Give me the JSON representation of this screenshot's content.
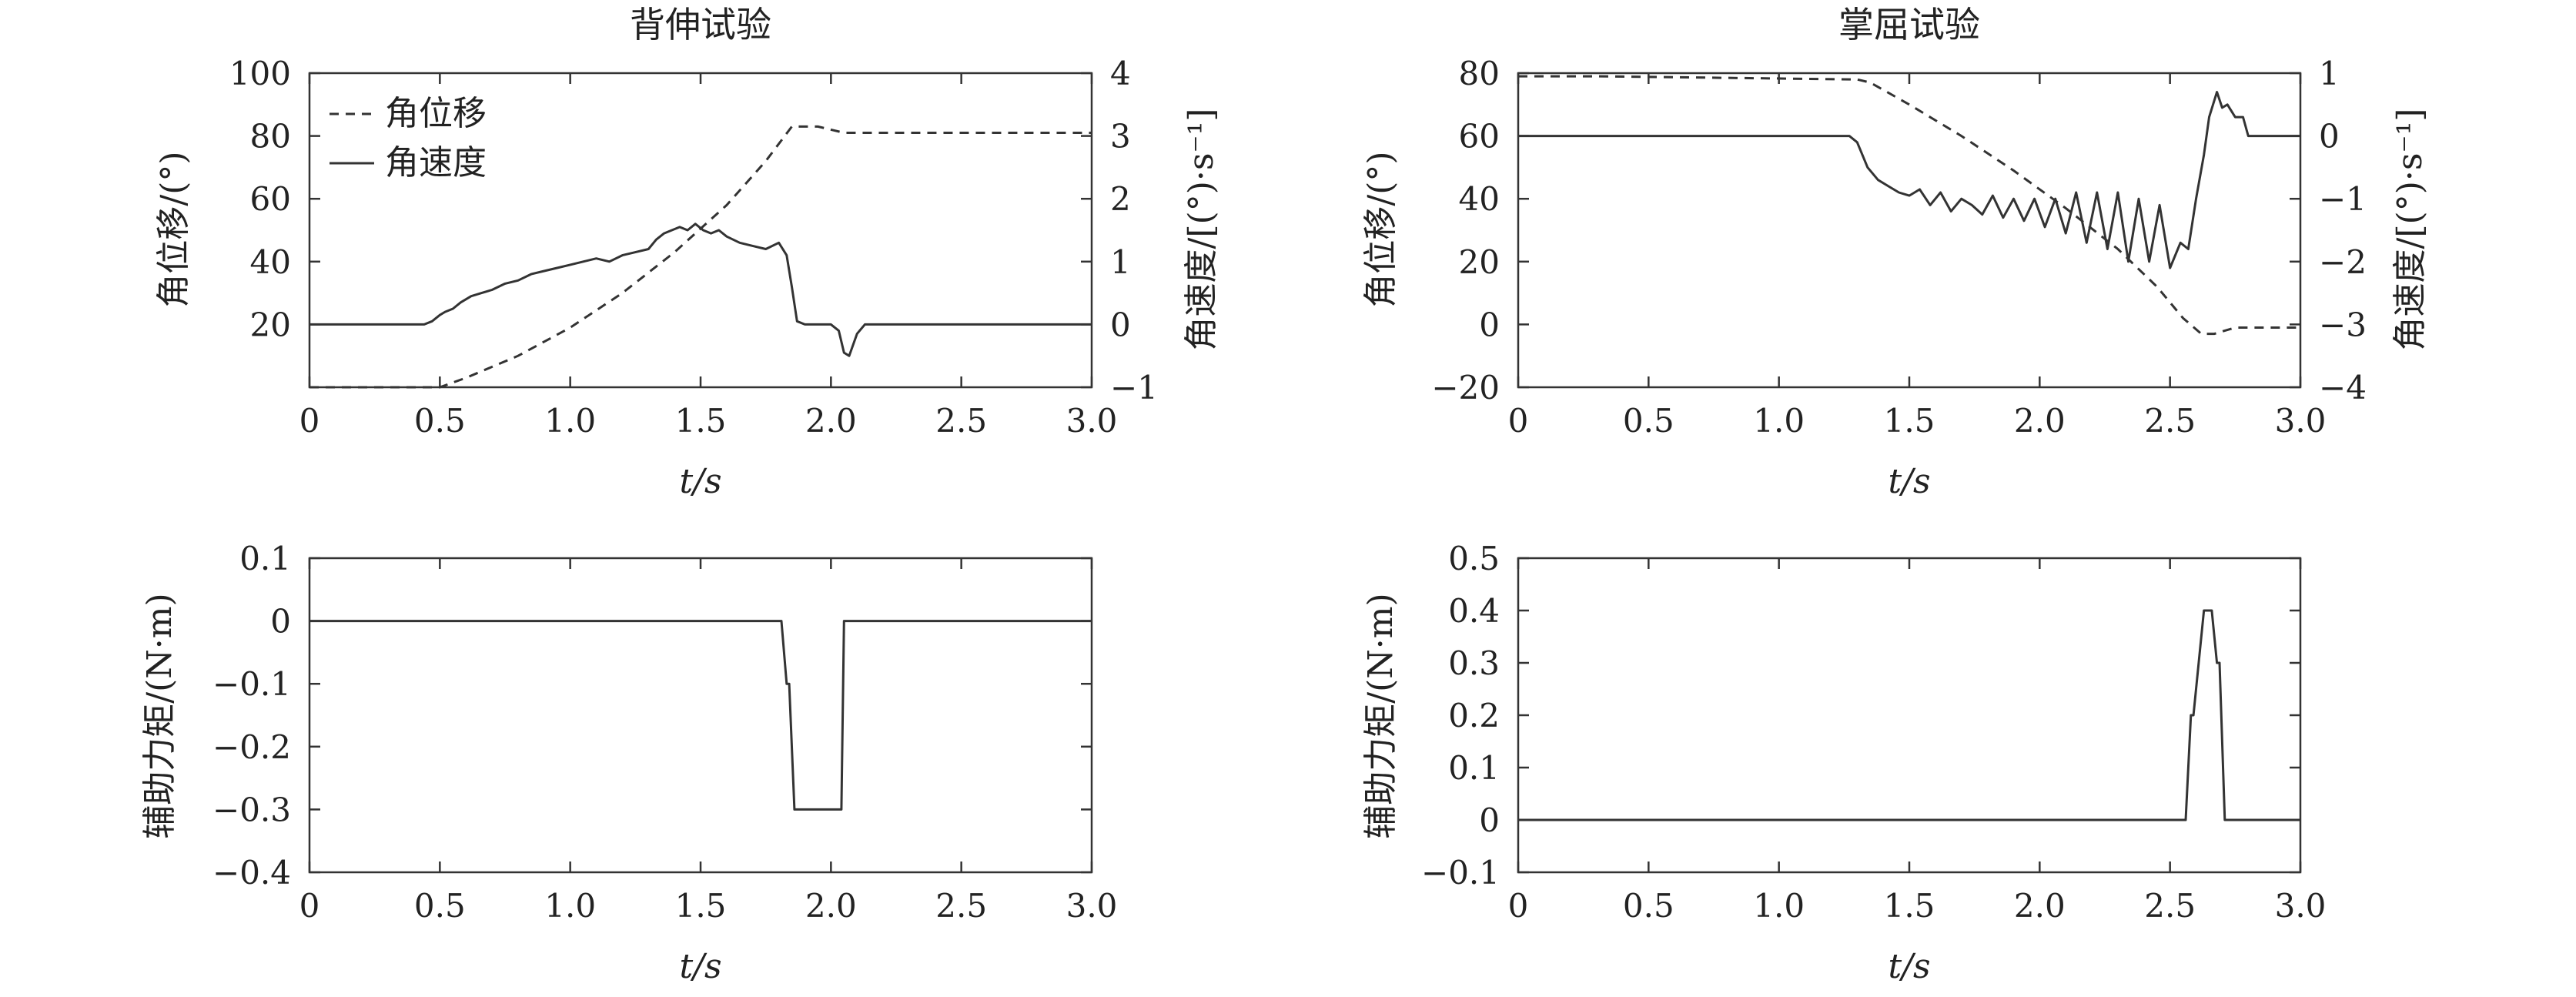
{
  "chart_data": [
    {
      "id": "tl",
      "type": "line",
      "title": "背伸试验",
      "xlabel": "t/s",
      "ylabel": "角位移/(°)",
      "y2label": "角速度/[(°)·s⁻¹]",
      "xlim": [
        0,
        3.0
      ],
      "ylim": [
        0,
        100
      ],
      "y2lim": [
        -1,
        4
      ],
      "xticks": [
        0,
        0.5,
        1.0,
        1.5,
        2.0,
        2.5,
        3.0
      ],
      "xtick_labels": [
        "0",
        "0.5",
        "1.0",
        "1.5",
        "2.0",
        "2.5",
        "3.0"
      ],
      "yticks": [
        20,
        40,
        60,
        80,
        100
      ],
      "ytick_labels": [
        "20",
        "40",
        "60",
        "80",
        "100"
      ],
      "y2ticks": [
        -1,
        0,
        1,
        2,
        3,
        4
      ],
      "y2tick_labels": [
        "−1",
        "0",
        "1",
        "2",
        "3",
        "4"
      ],
      "legend": {
        "placement": "top-left",
        "entries": [
          {
            "name": "角位移",
            "style": "dashed"
          },
          {
            "name": "角速度",
            "style": "solid"
          }
        ]
      },
      "series": [
        {
          "name": "角位移",
          "style": "dashed",
          "axis": "left",
          "x": [
            0,
            0.5,
            0.6,
            0.8,
            1.0,
            1.2,
            1.4,
            1.6,
            1.75,
            1.85,
            1.95,
            2.05,
            3.0
          ],
          "values": [
            0,
            0,
            3,
            10,
            19,
            30,
            43,
            58,
            72,
            83,
            83,
            81,
            81
          ]
        },
        {
          "name": "角速度",
          "style": "solid",
          "axis": "right",
          "x": [
            0,
            0.44,
            0.47,
            0.5,
            0.52,
            0.55,
            0.58,
            0.62,
            0.66,
            0.7,
            0.75,
            0.8,
            0.85,
            0.9,
            0.95,
            1.0,
            1.05,
            1.1,
            1.15,
            1.2,
            1.25,
            1.3,
            1.33,
            1.36,
            1.39,
            1.42,
            1.45,
            1.48,
            1.51,
            1.54,
            1.57,
            1.6,
            1.65,
            1.7,
            1.75,
            1.8,
            1.83,
            1.85,
            1.87,
            1.9,
            1.95,
            2.0,
            2.03,
            2.05,
            2.07,
            2.1,
            2.13,
            2.2,
            3.0
          ],
          "values": [
            0,
            0,
            0.05,
            0.15,
            0.2,
            0.25,
            0.35,
            0.45,
            0.5,
            0.55,
            0.65,
            0.7,
            0.8,
            0.85,
            0.9,
            0.95,
            1.0,
            1.05,
            1.0,
            1.1,
            1.15,
            1.2,
            1.35,
            1.45,
            1.5,
            1.55,
            1.5,
            1.6,
            1.5,
            1.45,
            1.5,
            1.4,
            1.3,
            1.25,
            1.2,
            1.3,
            1.1,
            0.6,
            0.05,
            0.0,
            0.0,
            0.0,
            -0.1,
            -0.45,
            -0.5,
            -0.15,
            0.0,
            0.0,
            0.0
          ]
        }
      ]
    },
    {
      "id": "tr",
      "type": "line",
      "title": "掌屈试验",
      "xlabel": "t/s",
      "ylabel": "角位移/(°)",
      "y2label": "角速度/[(°)·s⁻¹]",
      "xlim": [
        0,
        3.0
      ],
      "ylim": [
        -20,
        80
      ],
      "y2lim": [
        -4,
        1
      ],
      "xticks": [
        0,
        0.5,
        1.0,
        1.5,
        2.0,
        2.5,
        3.0
      ],
      "xtick_labels": [
        "0",
        "0.5",
        "1.0",
        "1.5",
        "2.0",
        "2.5",
        "3.0"
      ],
      "yticks": [
        -20,
        0,
        20,
        40,
        60,
        80
      ],
      "ytick_labels": [
        "−20",
        "0",
        "20",
        "40",
        "60",
        "80"
      ],
      "y2ticks": [
        -4,
        -3,
        -2,
        -1,
        0,
        1
      ],
      "y2tick_labels": [
        "−4",
        "−3",
        "−2",
        "−1",
        "0",
        "1"
      ],
      "series": [
        {
          "name": "角位移",
          "style": "dashed",
          "axis": "left",
          "x": [
            0,
            0.3,
            1.3,
            1.35,
            1.5,
            1.7,
            1.9,
            2.1,
            2.3,
            2.45,
            2.55,
            2.62,
            2.67,
            2.75,
            3.0
          ],
          "values": [
            79,
            79,
            78,
            77,
            70,
            60,
            49,
            37,
            24,
            12,
            2,
            -3,
            -3,
            -1,
            -1
          ]
        },
        {
          "name": "角速度",
          "style": "solid",
          "axis": "right",
          "x": [
            0,
            1.27,
            1.3,
            1.34,
            1.38,
            1.42,
            1.46,
            1.5,
            1.54,
            1.58,
            1.62,
            1.66,
            1.7,
            1.74,
            1.78,
            1.82,
            1.86,
            1.9,
            1.94,
            1.98,
            2.02,
            2.06,
            2.1,
            2.14,
            2.18,
            2.22,
            2.26,
            2.3,
            2.34,
            2.38,
            2.42,
            2.46,
            2.5,
            2.54,
            2.57,
            2.6,
            2.63,
            2.65,
            2.68,
            2.7,
            2.72,
            2.75,
            2.78,
            2.8,
            2.85,
            3.0
          ],
          "values": [
            0,
            0,
            -0.1,
            -0.5,
            -0.7,
            -0.8,
            -0.9,
            -0.95,
            -0.85,
            -1.1,
            -0.9,
            -1.2,
            -1.0,
            -1.1,
            -1.25,
            -0.95,
            -1.3,
            -1.0,
            -1.35,
            -1.0,
            -1.45,
            -1.0,
            -1.55,
            -0.9,
            -1.7,
            -0.9,
            -1.8,
            -0.9,
            -2.0,
            -1.0,
            -2.0,
            -1.1,
            -2.1,
            -1.7,
            -1.8,
            -1.0,
            -0.3,
            0.3,
            0.7,
            0.45,
            0.5,
            0.3,
            0.3,
            0.0,
            0.0,
            0.0
          ]
        }
      ]
    },
    {
      "id": "bl",
      "type": "line",
      "title": "",
      "xlabel": "t/s",
      "ylabel": "辅助力矩/(N·m)",
      "xlim": [
        0,
        3.0
      ],
      "ylim": [
        -0.4,
        0.1
      ],
      "xticks": [
        0,
        0.5,
        1.0,
        1.5,
        2.0,
        2.5,
        3.0
      ],
      "xtick_labels": [
        "0",
        "0.5",
        "1.0",
        "1.5",
        "2.0",
        "2.5",
        "3.0"
      ],
      "yticks": [
        -0.4,
        -0.3,
        -0.2,
        -0.1,
        0,
        0.1
      ],
      "ytick_labels": [
        "−0.4",
        "−0.3",
        "−0.2",
        "−0.1",
        "0",
        "0.1"
      ],
      "series": [
        {
          "name": "",
          "style": "solid",
          "axis": "left",
          "x": [
            0,
            1.81,
            1.83,
            1.84,
            1.86,
            2.04,
            2.05,
            3.0
          ],
          "values": [
            0,
            0,
            -0.1,
            -0.1,
            -0.3,
            -0.3,
            0,
            0
          ]
        }
      ]
    },
    {
      "id": "br",
      "type": "line",
      "title": "",
      "xlabel": "t/s",
      "ylabel": "辅助力矩/(N·m)",
      "xlim": [
        0,
        3.0
      ],
      "ylim": [
        -0.1,
        0.5
      ],
      "xticks": [
        0,
        0.5,
        1.0,
        1.5,
        2.0,
        2.5,
        3.0
      ],
      "xtick_labels": [
        "0",
        "0.5",
        "1.0",
        "1.5",
        "2.0",
        "2.5",
        "3.0"
      ],
      "yticks": [
        -0.1,
        0,
        0.1,
        0.2,
        0.3,
        0.4,
        0.5
      ],
      "ytick_labels": [
        "−0.1",
        "0",
        "0.1",
        "0.2",
        "0.3",
        "0.4",
        "0.5"
      ],
      "series": [
        {
          "name": "",
          "style": "solid",
          "axis": "left",
          "x": [
            0,
            2.56,
            2.58,
            2.59,
            2.61,
            2.63,
            2.66,
            2.68,
            2.69,
            2.71,
            3.0
          ],
          "values": [
            0,
            0,
            0.2,
            0.2,
            0.3,
            0.4,
            0.4,
            0.3,
            0.3,
            0,
            0
          ]
        }
      ]
    }
  ]
}
